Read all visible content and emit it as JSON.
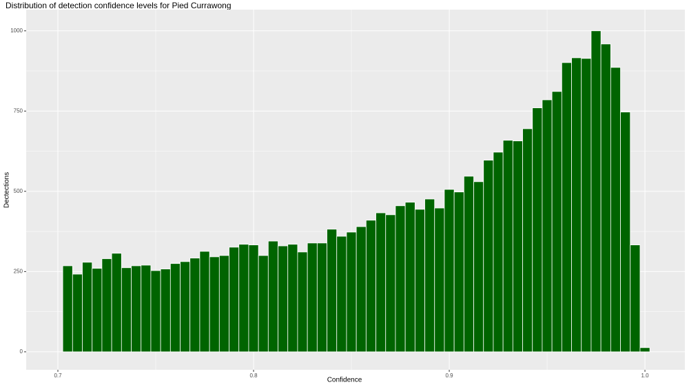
{
  "chart_data": {
    "type": "histogram",
    "title": "Distribution of detection confidence levels for Pied Currawong",
    "x_label": "Confidence",
    "y_label": "Dectections",
    "bins": [
      0.7025,
      0.7075,
      0.7125,
      0.7175,
      0.7225,
      0.7275,
      0.7325,
      0.7375,
      0.7425,
      0.7475,
      0.7525,
      0.7575,
      0.7625,
      0.7675,
      0.7725,
      0.7775,
      0.7825,
      0.7875,
      0.7925,
      0.7975,
      0.8025,
      0.8075,
      0.8125,
      0.8175,
      0.8225,
      0.8275,
      0.8325,
      0.8375,
      0.8425,
      0.8475,
      0.8525,
      0.8575,
      0.8625,
      0.8675,
      0.8725,
      0.8775,
      0.8825,
      0.8875,
      0.8925,
      0.8975,
      0.9025,
      0.9075,
      0.9125,
      0.9175,
      0.9225,
      0.9275,
      0.9325,
      0.9375,
      0.9425,
      0.9475,
      0.9525,
      0.9575,
      0.9625,
      0.9675,
      0.9725,
      0.9775,
      0.9825,
      0.9875,
      0.9925,
      0.9975,
      1.0025
    ],
    "counts": [
      268,
      242,
      279,
      260,
      290,
      307,
      262,
      268,
      270,
      253,
      258,
      275,
      281,
      292,
      313,
      296,
      300,
      326,
      335,
      333,
      300,
      345,
      330,
      335,
      311,
      339,
      339,
      382,
      360,
      373,
      390,
      410,
      433,
      427,
      455,
      466,
      444,
      476,
      448,
      506,
      498,
      547,
      530,
      597,
      622,
      659,
      657,
      695,
      760,
      785,
      811,
      901,
      916,
      914,
      1000,
      959,
      886,
      747,
      333,
      13
    ],
    "color": "#006400",
    "xlim": [
      0.6838,
      1.0204
    ],
    "xticks": [
      0.7,
      0.8,
      0.9,
      {
        "value": 1,
        "label": "1.0"
      }
    ],
    "ylim": [
      -56,
      1066
    ],
    "yticks": [
      0,
      250,
      500,
      750,
      1000
    ],
    "grid": true
  }
}
